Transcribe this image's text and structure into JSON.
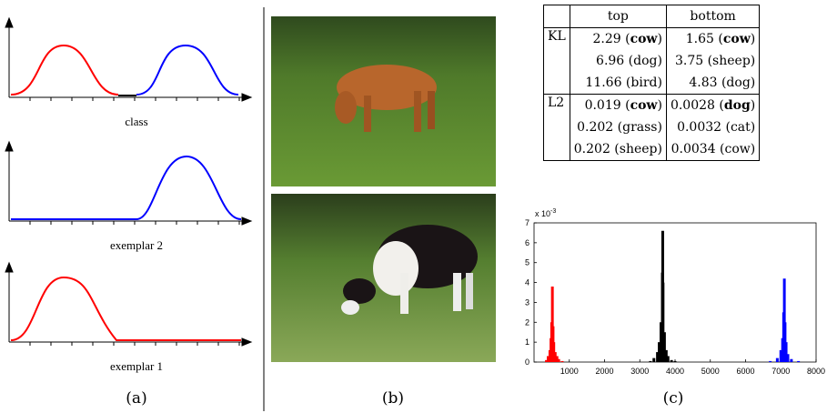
{
  "panel_a": {
    "plots": [
      {
        "label": "class"
      },
      {
        "label": "exemplar 2"
      },
      {
        "label": "exemplar 1"
      }
    ]
  },
  "captions": [
    "(a)",
    "(b)",
    "(c)"
  ],
  "table": {
    "header": [
      "top",
      "bottom"
    ],
    "groups": [
      {
        "label": "KL",
        "rows": [
          [
            {
              "text": "2.29 (cow)",
              "bold": "cow"
            },
            {
              "text": "1.65 (cow)",
              "bold": "cow"
            }
          ],
          [
            {
              "text": "6.96 (dog)"
            },
            {
              "text": "3.75 (sheep)"
            }
          ],
          [
            {
              "text": "11.66 (bird)"
            },
            {
              "text": "4.83 (dog)"
            }
          ]
        ]
      },
      {
        "label": "L2",
        "rows": [
          [
            {
              "text": "0.019 (cow)",
              "bold": "cow"
            },
            {
              "text": "0.0028 (dog)",
              "bold": "dog"
            }
          ],
          [
            {
              "text": "0.202 (grass)"
            },
            {
              "text": "0.0032 (cat)"
            }
          ],
          [
            {
              "text": "0.202 (sheep)"
            },
            {
              "text": "0.0034 (cow)"
            }
          ]
        ]
      }
    ]
  },
  "chart_data": {
    "type": "stem",
    "y_multiplier": "x 10",
    "y_exponent": "-3",
    "xlim": [
      0,
      8000
    ],
    "xticks": [
      1000,
      2000,
      3000,
      4000,
      5000,
      6000,
      7000,
      8000
    ],
    "ylim": [
      0,
      7
    ],
    "yticks": [
      0,
      1,
      2,
      3,
      4,
      5,
      6,
      7
    ],
    "series": [
      {
        "color": "#ff0000",
        "x": [
          350,
          400,
          450,
          480,
          500,
          520,
          540,
          560,
          600,
          650,
          700,
          800
        ],
        "values": [
          0.1,
          0.3,
          0.6,
          1.2,
          2.0,
          3.8,
          1.8,
          1.0,
          0.5,
          0.3,
          0.15,
          0.05
        ]
      },
      {
        "color": "#000000",
        "x": [
          3300,
          3400,
          3500,
          3550,
          3600,
          3640,
          3650,
          3660,
          3700,
          3750,
          3800,
          3900,
          4000
        ],
        "values": [
          0.05,
          0.2,
          0.5,
          1.0,
          2.0,
          4.5,
          6.6,
          4.0,
          1.5,
          0.6,
          0.3,
          0.1,
          0.05
        ]
      },
      {
        "color": "#0000ff",
        "x": [
          6700,
          6900,
          7000,
          7050,
          7080,
          7100,
          7120,
          7150,
          7200,
          7300,
          7500
        ],
        "values": [
          0.05,
          0.2,
          0.6,
          1.2,
          2.5,
          4.2,
          2.0,
          1.0,
          0.4,
          0.15,
          0.05
        ]
      }
    ]
  }
}
